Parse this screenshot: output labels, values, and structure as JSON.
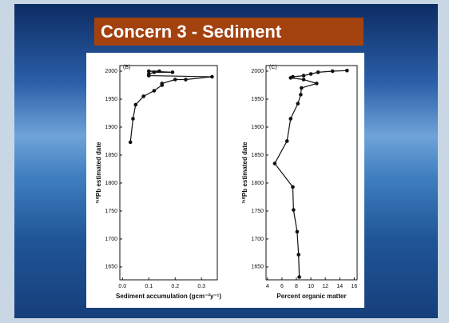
{
  "slide": {
    "title": "Concern 3 - Sediment"
  },
  "chart_data": [
    {
      "type": "line",
      "panel_label": "(B)",
      "y_label": "²¹⁰Pb estimated date",
      "x_label": "Sediment accumulation (gcm⁻²y⁻¹)",
      "x": [
        0.03,
        0.04,
        0.05,
        0.08,
        0.12,
        0.15,
        0.15,
        0.2,
        0.24,
        0.34,
        0.1,
        0.1,
        0.12,
        0.19,
        0.1,
        0.14
      ],
      "values": [
        1873,
        1915,
        1940,
        1955,
        1965,
        1975,
        1978,
        1985,
        1985,
        1990,
        1992,
        1995,
        1998,
        1998,
        2000,
        2000
      ],
      "color": "#111111",
      "xlim": [
        -0.01,
        0.36
      ],
      "ylim": [
        1627,
        2010
      ],
      "xticks": [
        {
          "value": 0,
          "label": "0.0"
        },
        0.1,
        0.2,
        0.3
      ],
      "yticks": [
        1650,
        1700,
        1750,
        1800,
        1850,
        1900,
        1950,
        2000
      ]
    },
    {
      "type": "line",
      "panel_label": "(C)",
      "y_label": "²¹⁰Pb estimated date",
      "x_label": "Percent organic matter",
      "x": [
        15,
        13,
        11,
        10,
        9,
        7.5,
        7.2,
        9,
        10.8,
        8.7,
        8.6,
        8.2,
        7.2,
        6.7,
        5,
        7.5,
        7.6,
        8.1,
        8.3,
        8.4
      ],
      "values": [
        2001,
        2000,
        1998,
        1995,
        1992,
        1990,
        1988,
        1985,
        1978,
        1970,
        1958,
        1942,
        1915,
        1875,
        1835,
        1793,
        1752,
        1713,
        1672,
        1632
      ],
      "color": "#111111",
      "xlim": [
        3.8,
        16.4
      ],
      "ylim": [
        1627,
        2010
      ],
      "xticks": [
        4,
        6,
        8,
        10,
        12,
        14,
        16
      ],
      "yticks": [
        1650,
        1700,
        1750,
        1800,
        1850,
        1900,
        1950,
        2000
      ]
    }
  ]
}
